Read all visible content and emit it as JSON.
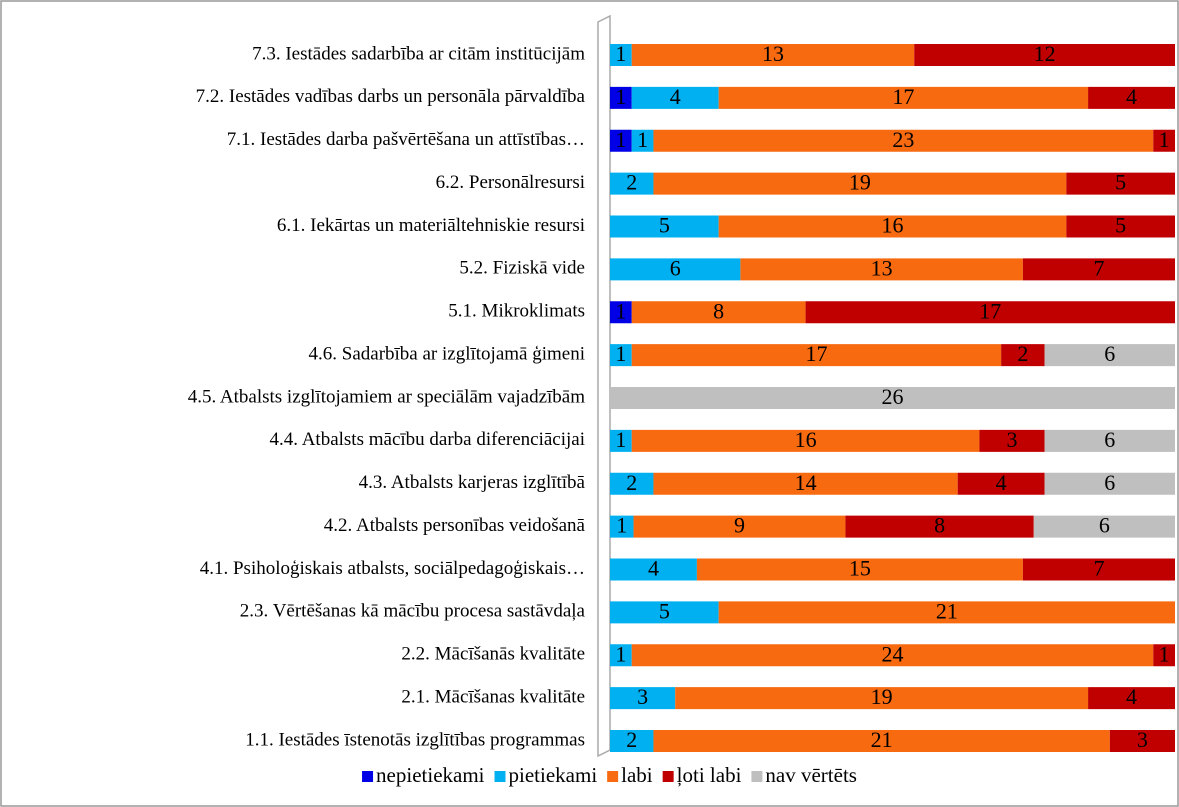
{
  "chart_data": {
    "type": "bar",
    "orientation": "horizontal",
    "stacked": "percent",
    "categories": [
      "7.3. Iestādes sadarbība ar citām institūcijām",
      "7.2. Iestādes vadības darbs un personāla pārvaldība",
      "7.1. Iestādes darba pašvērtēšana un attīstības…",
      "6.2. Personālresursi",
      "6.1. Iekārtas un materiāltehniskie resursi",
      "5.2. Fiziskā vide",
      "5.1. Mikroklimats",
      "4.6. Sadarbība ar izglītojamā ģimeni",
      "4.5. Atbalsts izglītojamiem ar speciālām vajadzībām",
      "4.4. Atbalsts mācību darba diferenciācijai",
      "4.3. Atbalsts karjeras izglītībā",
      "4.2. Atbalsts personības veidošanā",
      "4.1. Psiholoģiskais atbalsts, sociālpedagoģiskais…",
      "2.3. Vērtēšanas kā mācību procesa sastāvdaļa",
      "2.2. Mācīšanās kvalitāte",
      "2.1. Mācīšanas kvalitāte",
      "1.1. Iestādes īstenotās izglītības programmas"
    ],
    "series": [
      {
        "name": "nepietiekami",
        "color": "#0000e6",
        "values": [
          null,
          1,
          1,
          null,
          null,
          null,
          1,
          null,
          null,
          null,
          null,
          null,
          null,
          null,
          null,
          null,
          null
        ]
      },
      {
        "name": "pietiekami",
        "color": "#00b0f0",
        "values": [
          1,
          4,
          1,
          2,
          5,
          6,
          null,
          1,
          null,
          1,
          2,
          1,
          4,
          5,
          1,
          3,
          2
        ]
      },
      {
        "name": "labi",
        "color": "#f86a10",
        "values": [
          13,
          17,
          23,
          19,
          16,
          13,
          8,
          17,
          null,
          16,
          14,
          9,
          15,
          21,
          24,
          19,
          21
        ]
      },
      {
        "name": "ļoti labi",
        "color": "#c00000",
        "values": [
          12,
          4,
          1,
          5,
          5,
          7,
          17,
          2,
          null,
          3,
          4,
          8,
          7,
          null,
          1,
          4,
          3
        ]
      },
      {
        "name": "nav vērtēts",
        "color": "#bfbfbf",
        "values": [
          null,
          null,
          null,
          null,
          null,
          null,
          null,
          6,
          26,
          6,
          6,
          6,
          null,
          null,
          null,
          null,
          null
        ]
      }
    ],
    "legend": "bottom"
  }
}
